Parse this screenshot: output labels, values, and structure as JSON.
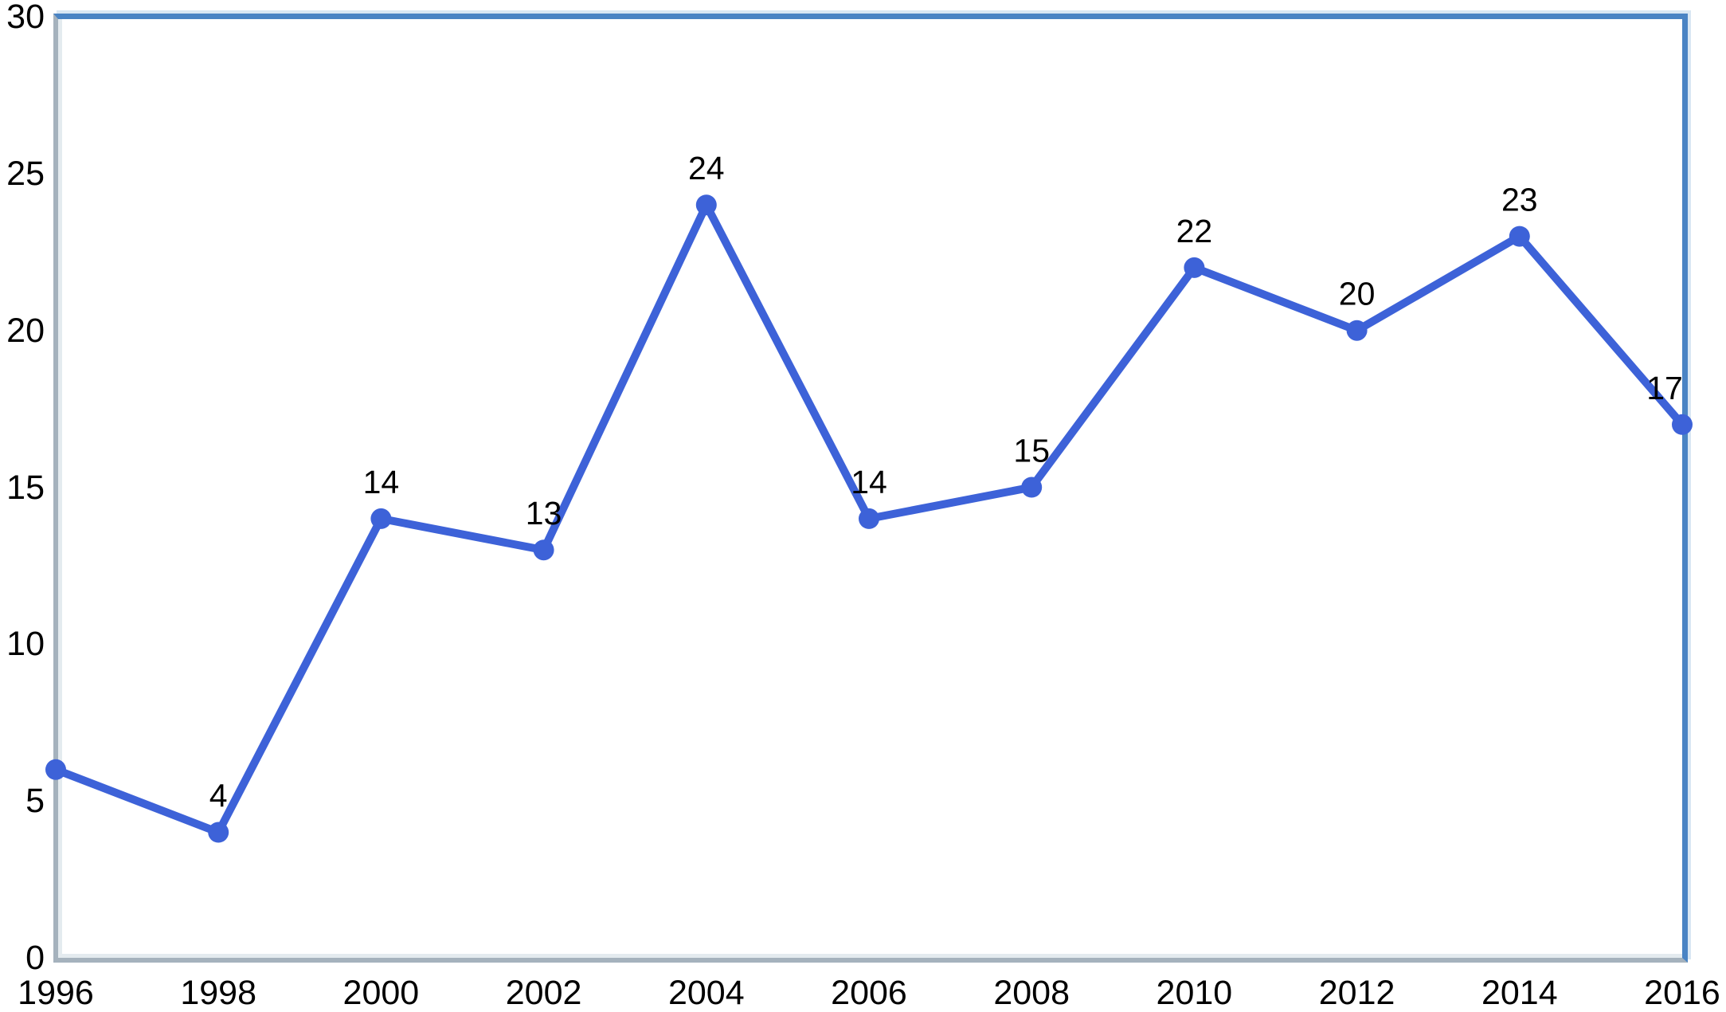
{
  "chart_data": {
    "type": "line",
    "x": [
      1996,
      1998,
      2000,
      2002,
      2004,
      2006,
      2008,
      2010,
      2012,
      2014,
      2016
    ],
    "values": [
      6,
      4,
      14,
      13,
      24,
      14,
      15,
      22,
      20,
      23,
      17
    ],
    "point_labels": [
      null,
      "4",
      "14",
      "13",
      "24",
      "14",
      "15",
      "22",
      "20",
      "23",
      "17"
    ],
    "title": "",
    "xlabel": "",
    "ylabel": "",
    "xlim": [
      1996,
      2016
    ],
    "ylim": [
      0,
      30
    ],
    "y_ticks": [
      0,
      5,
      10,
      15,
      20,
      25,
      30
    ],
    "x_ticks": [
      1996,
      1998,
      2000,
      2002,
      2004,
      2006,
      2008,
      2010,
      2012,
      2014,
      2016
    ],
    "grid": false,
    "legend": false,
    "colors": {
      "line": "#3d62d8",
      "marker": "#3d62d8",
      "frame_top_right": "#4a84c4",
      "axis_left_bottom": "#a5b2bd",
      "label_text": "#000000",
      "background": "#ffffff"
    }
  }
}
